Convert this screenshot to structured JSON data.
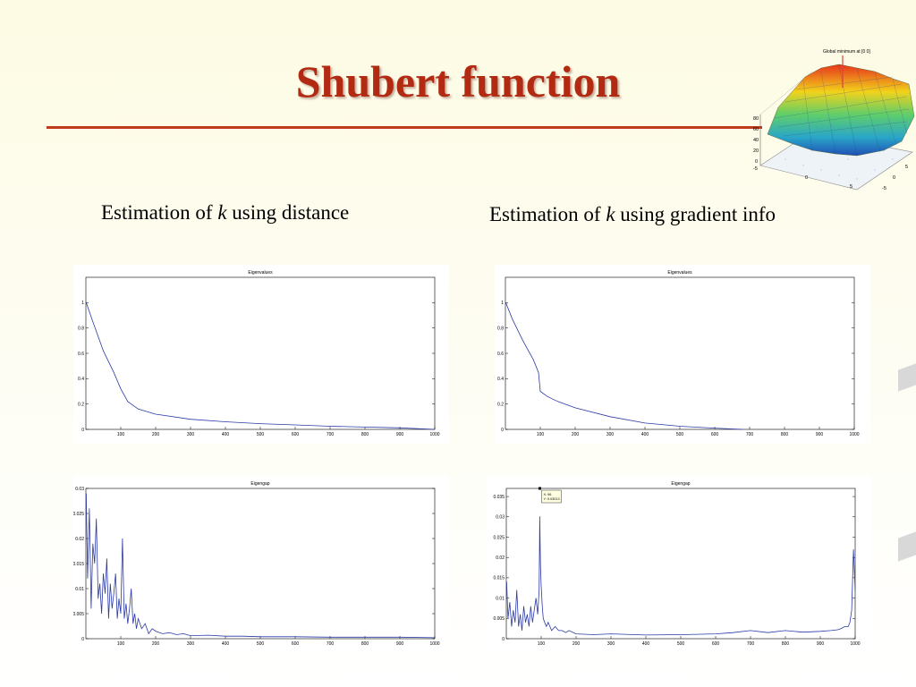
{
  "slide": {
    "title": "Shubert function",
    "captions": [
      {
        "prefix": "Estimation of ",
        "var": "k",
        "suffix": " using distance"
      },
      {
        "prefix": "Estimation of ",
        "var": "k",
        "suffix": " using gradient info"
      }
    ],
    "thumbnail": {
      "title": "Global minimum at [0 0]",
      "zticks": [
        "80",
        "60",
        "40",
        "20",
        "0",
        "-5"
      ],
      "xticks": [
        "0",
        "5"
      ],
      "yticks": [
        "-5",
        "0",
        "5"
      ]
    },
    "datatip": {
      "x_line": "X: 96",
      "y_line": "Y: 0.03013"
    }
  },
  "chart_data": [
    {
      "type": "line",
      "title": "Eigenvalues",
      "xlim": [
        0,
        1000
      ],
      "ylim": [
        0,
        1.2
      ],
      "xticks": [
        "100",
        "200",
        "300",
        "400",
        "500",
        "600",
        "700",
        "800",
        "900",
        "1000"
      ],
      "yticks": [
        "0",
        "0.2",
        "0.4",
        "0.6",
        "0.8",
        "1"
      ],
      "series": [
        {
          "x": [
            1,
            20,
            50,
            80,
            100,
            120,
            150,
            200,
            300,
            400,
            500,
            600,
            700,
            800,
            900,
            1000
          ],
          "values": [
            1.0,
            0.85,
            0.62,
            0.45,
            0.32,
            0.22,
            0.16,
            0.12,
            0.08,
            0.06,
            0.045,
            0.035,
            0.025,
            0.018,
            0.012,
            0.0
          ]
        }
      ]
    },
    {
      "type": "line",
      "title": "Eigenvalues",
      "xlim": [
        0,
        1000
      ],
      "ylim": [
        0,
        1.2
      ],
      "xticks": [
        "100",
        "200",
        "300",
        "400",
        "500",
        "600",
        "700",
        "800",
        "900",
        "1000"
      ],
      "yticks": [
        "0",
        "0.2",
        "0.4",
        "0.6",
        "0.8",
        "1"
      ],
      "series": [
        {
          "x": [
            1,
            20,
            50,
            80,
            95,
            100,
            120,
            150,
            200,
            300,
            400,
            500,
            600,
            680
          ],
          "values": [
            1.0,
            0.87,
            0.7,
            0.55,
            0.45,
            0.3,
            0.26,
            0.22,
            0.17,
            0.1,
            0.05,
            0.025,
            0.01,
            0.0
          ]
        }
      ]
    },
    {
      "type": "line",
      "title": "Eigengap",
      "xlim": [
        0,
        1000
      ],
      "ylim": [
        0,
        0.03
      ],
      "xticks": [
        "100",
        "200",
        "300",
        "400",
        "500",
        "600",
        "700",
        "800",
        "900",
        "1000"
      ],
      "yticks": [
        "0",
        "0.005",
        "0.01",
        "0.015",
        "0.02",
        "0.025",
        "0.03"
      ],
      "series": [
        {
          "x": [
            1,
            5,
            10,
            15,
            20,
            25,
            30,
            35,
            40,
            45,
            50,
            55,
            60,
            65,
            70,
            75,
            80,
            85,
            90,
            95,
            100,
            105,
            110,
            115,
            120,
            125,
            130,
            135,
            140,
            145,
            150,
            160,
            170,
            180,
            190,
            200,
            220,
            240,
            260,
            280,
            300,
            350,
            400,
            450,
            500,
            600,
            700,
            800,
            900,
            1000
          ],
          "values": [
            0.029,
            0.012,
            0.026,
            0.006,
            0.019,
            0.015,
            0.024,
            0.008,
            0.011,
            0.005,
            0.013,
            0.009,
            0.016,
            0.004,
            0.011,
            0.006,
            0.009,
            0.013,
            0.004,
            0.008,
            0.005,
            0.02,
            0.004,
            0.007,
            0.003,
            0.006,
            0.01,
            0.003,
            0.005,
            0.002,
            0.004,
            0.002,
            0.003,
            0.001,
            0.002,
            0.0015,
            0.001,
            0.0012,
            0.0008,
            0.001,
            0.0006,
            0.0007,
            0.0005,
            0.0005,
            0.0004,
            0.0004,
            0.0003,
            0.0003,
            0.0003,
            0.0002
          ]
        }
      ]
    },
    {
      "type": "line",
      "title": "Eigengap",
      "xlim": [
        0,
        1000
      ],
      "ylim": [
        0,
        0.037
      ],
      "xticks": [
        "100",
        "200",
        "300",
        "400",
        "500",
        "600",
        "700",
        "800",
        "900",
        "1000"
      ],
      "yticks": [
        "0",
        "0.005",
        "0.01",
        "0.015",
        "0.02",
        "0.025",
        "0.03",
        "0.035"
      ],
      "series": [
        {
          "x": [
            1,
            5,
            10,
            15,
            20,
            25,
            30,
            35,
            40,
            45,
            50,
            55,
            60,
            65,
            70,
            75,
            80,
            85,
            90,
            94,
            96,
            98,
            100,
            103,
            106,
            110,
            115,
            120,
            130,
            140,
            150,
            160,
            170,
            180,
            200,
            250,
            300,
            400,
            500,
            600,
            650,
            700,
            750,
            800,
            850,
            900,
            930,
            950,
            960,
            970,
            980,
            985,
            990,
            995,
            1000
          ],
          "values": [
            0.014,
            0.005,
            0.009,
            0.003,
            0.007,
            0.004,
            0.012,
            0.003,
            0.006,
            0.002,
            0.008,
            0.004,
            0.006,
            0.003,
            0.008,
            0.004,
            0.007,
            0.01,
            0.006,
            0.012,
            0.0301,
            0.018,
            0.013,
            0.008,
            0.005,
            0.004,
            0.003,
            0.004,
            0.002,
            0.003,
            0.002,
            0.002,
            0.0015,
            0.002,
            0.0012,
            0.001,
            0.0012,
            0.0009,
            0.001,
            0.0012,
            0.0015,
            0.002,
            0.0015,
            0.002,
            0.0016,
            0.0018,
            0.002,
            0.0022,
            0.0025,
            0.003,
            0.003,
            0.004,
            0.007,
            0.022,
            0.012
          ]
        }
      ]
    }
  ]
}
